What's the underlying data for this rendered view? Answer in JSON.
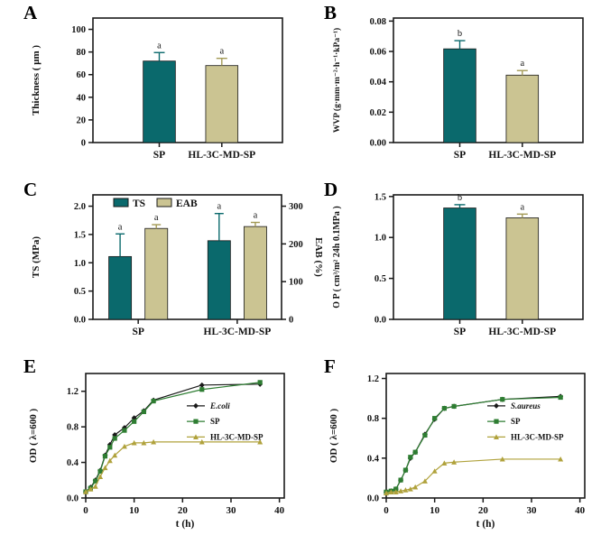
{
  "figure": {
    "background": "#ffffff",
    "group_labels": [
      "SP",
      "HL-3C-MD-SP"
    ]
  },
  "colors": {
    "teal": "#0a696c",
    "khaki": "#cbc492",
    "khaki_err": "#a39a55",
    "black_line": "#1a1a1a",
    "green": "#2e7d32",
    "olive": "#b0a23c",
    "frame": "#1a1a1a",
    "text": "#111111"
  },
  "chart_data": [
    {
      "panel": "A",
      "type": "bar",
      "ylabel": "Thickness ( μm )",
      "categories": [
        "SP",
        "HL-3C-MD-SP"
      ],
      "values": [
        72,
        68
      ],
      "errors": [
        7.5,
        6.4
      ],
      "sig_labels": [
        "a",
        "a"
      ],
      "bar_colors": [
        "teal",
        "khaki"
      ],
      "ylim": [
        0,
        110
      ],
      "yticks": [
        0,
        20,
        40,
        60,
        80,
        100
      ],
      "ydecimals": 0,
      "ylabel_size": 11
    },
    {
      "panel": "B",
      "type": "bar",
      "ylabel": "WVP (g·mm·m⁻²·h⁻¹·kPa⁻¹)",
      "categories": [
        "SP",
        "HL-3C-MD-SP"
      ],
      "values": [
        0.0617,
        0.0444
      ],
      "errors": [
        0.0054,
        0.003
      ],
      "sig_labels": [
        "b",
        "a"
      ],
      "bar_colors": [
        "teal",
        "khaki"
      ],
      "ylim": [
        0,
        0.082
      ],
      "yticks": [
        0,
        0.02,
        0.04,
        0.06,
        0.08
      ],
      "ydecimals": 2,
      "ylabel_size": 9.5
    },
    {
      "panel": "C",
      "type": "grouped-bar-dual",
      "ylabel_left": "TS (MPa)",
      "ylabel_right": "EAB (%)",
      "categories": [
        "SP",
        "HL-3C-MD-SP"
      ],
      "legend": [
        "TS",
        "EAB"
      ],
      "series": [
        {
          "name": "TS",
          "axis": "left",
          "color": "teal",
          "values": [
            1.11,
            1.39
          ],
          "errors": [
            0.4,
            0.48
          ],
          "sig_labels": [
            "a",
            "a"
          ]
        },
        {
          "name": "EAB",
          "axis": "right",
          "color": "khaki",
          "values": [
            241,
            246
          ],
          "errors": [
            10,
            11
          ],
          "sig_labels": [
            "a",
            "a"
          ]
        }
      ],
      "ylim_left": [
        0,
        2.2
      ],
      "yticks_left": [
        0,
        0.5,
        1.0,
        1.5,
        2.0
      ],
      "ydecimals_left": 1,
      "ylim_right": [
        0,
        330
      ],
      "yticks_right": [
        0,
        100,
        200,
        300
      ],
      "ydecimals_right": 0
    },
    {
      "panel": "D",
      "type": "bar",
      "ylabel": "O P ( cm³/m² 24h 0.1MPa )",
      "categories": [
        "SP",
        "HL-3C-MD-SP"
      ],
      "values": [
        1.36,
        1.24
      ],
      "errors": [
        0.04,
        0.045
      ],
      "sig_labels": [
        "b",
        "a"
      ],
      "bar_colors": [
        "teal",
        "khaki"
      ],
      "ylim": [
        0,
        1.52
      ],
      "yticks": [
        0,
        0.5,
        1.0,
        1.5
      ],
      "ydecimals": 1,
      "ylabel_size": 10
    },
    {
      "panel": "E",
      "type": "line",
      "ylabel": "OD ( λ=600 )",
      "xlabel": "t (h)",
      "x": [
        0,
        1,
        2,
        3,
        4,
        5,
        6,
        8,
        10,
        12,
        14,
        24,
        36
      ],
      "series": [
        {
          "name": "E.coli",
          "italic": true,
          "color": "black_line",
          "marker": "diamond",
          "values": [
            0.07,
            0.12,
            0.2,
            0.31,
            0.48,
            0.6,
            0.71,
            0.79,
            0.9,
            0.98,
            1.1,
            1.27,
            1.28
          ]
        },
        {
          "name": "SP",
          "italic": false,
          "color": "green",
          "marker": "square",
          "values": [
            0.07,
            0.11,
            0.19,
            0.3,
            0.47,
            0.57,
            0.67,
            0.76,
            0.86,
            0.97,
            1.09,
            1.22,
            1.3
          ]
        },
        {
          "name": "HL-3C-MD-SP",
          "italic": false,
          "color": "olive",
          "marker": "triangle",
          "values": [
            0.07,
            0.1,
            0.13,
            0.24,
            0.34,
            0.42,
            0.48,
            0.58,
            0.62,
            0.62,
            0.63,
            0.63,
            0.63
          ]
        }
      ],
      "xlim": [
        0,
        41
      ],
      "xticks": [
        0,
        10,
        20,
        30,
        40
      ],
      "ylim": [
        0,
        1.4
      ],
      "yticks": [
        0,
        0.4,
        0.8,
        1.2
      ],
      "ydecimals": 1
    },
    {
      "panel": "F",
      "type": "line",
      "ylabel": "OD ( λ=600 )",
      "xlabel": "t (h)",
      "x": [
        0,
        1,
        2,
        3,
        4,
        5,
        6,
        8,
        10,
        12,
        14,
        24,
        36
      ],
      "series": [
        {
          "name": "S.aureus",
          "italic": true,
          "color": "black_line",
          "marker": "diamond",
          "values": [
            0.06,
            0.07,
            0.09,
            0.18,
            0.28,
            0.4,
            0.46,
            0.64,
            0.79,
            0.9,
            0.92,
            0.99,
            1.02
          ]
        },
        {
          "name": "SP",
          "italic": false,
          "color": "green",
          "marker": "square",
          "values": [
            0.06,
            0.07,
            0.09,
            0.18,
            0.28,
            0.41,
            0.46,
            0.63,
            0.8,
            0.9,
            0.92,
            0.99,
            1.01
          ]
        },
        {
          "name": "HL-3C-MD-SP",
          "italic": false,
          "color": "olive",
          "marker": "triangle",
          "values": [
            0.05,
            0.06,
            0.06,
            0.07,
            0.08,
            0.09,
            0.11,
            0.17,
            0.27,
            0.35,
            0.36,
            0.39,
            0.39
          ]
        }
      ],
      "xlim": [
        0,
        41
      ],
      "xticks": [
        0,
        10,
        20,
        30,
        40
      ],
      "ylim": [
        0,
        1.25
      ],
      "yticks": [
        0,
        0.4,
        0.8,
        1.2
      ],
      "ydecimals": 1
    }
  ]
}
